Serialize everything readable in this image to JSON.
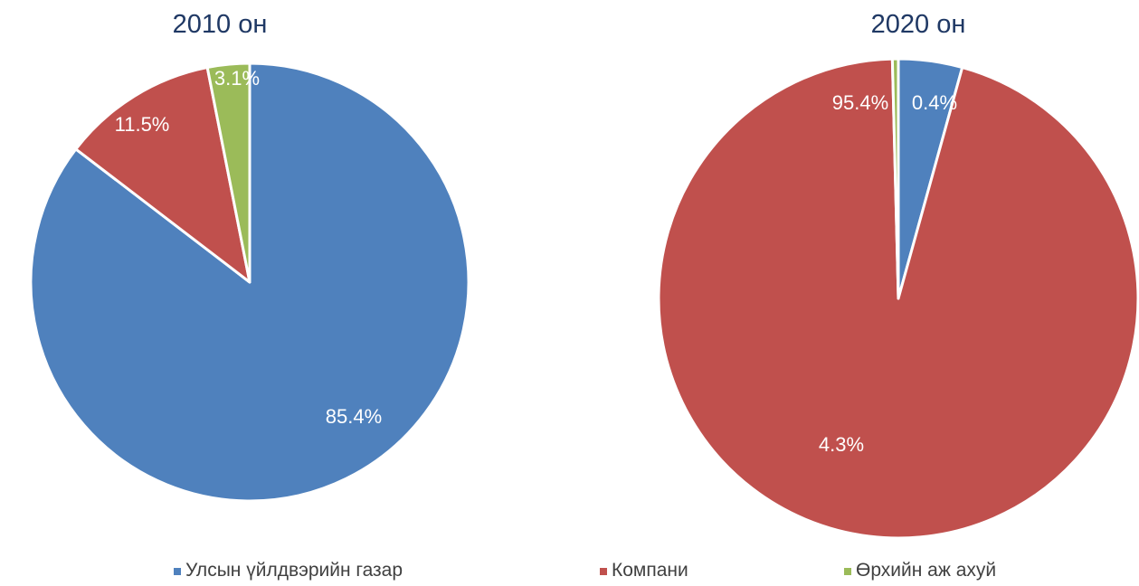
{
  "colors": {
    "state_enterprise": "#4f81bd",
    "company": "#c0504d",
    "household": "#9bbb59"
  },
  "legend": [
    {
      "label": "Улсын үйлдвэрийн газар",
      "color": "#4f81bd"
    },
    {
      "label": "Компани",
      "color": "#c0504d"
    },
    {
      "label": "Өрхийн аж ахуй",
      "color": "#9bbb59"
    }
  ],
  "chart_data": [
    {
      "type": "pie",
      "title": "2010 он",
      "categories": [
        "Улсын үйлдвэрийн газар",
        "Компани",
        "Өрхийн аж ахуй"
      ],
      "values": [
        85.4,
        11.5,
        3.1
      ],
      "labels": [
        "85.4%",
        "11.5%",
        "3.1%"
      ],
      "colors": [
        "#4f81bd",
        "#c0504d",
        "#9bbb59"
      ]
    },
    {
      "type": "pie",
      "title": "2020 он",
      "categories": [
        "Улсын үйлдвэрийн газар",
        "Компани",
        "Өрхийн аж ахуй"
      ],
      "values": [
        4.3,
        95.4,
        0.4
      ],
      "labels": [
        "4.3%",
        "95.4%",
        "0.4%"
      ],
      "colors": [
        "#4f81bd",
        "#c0504d",
        "#9bbb59"
      ]
    }
  ]
}
